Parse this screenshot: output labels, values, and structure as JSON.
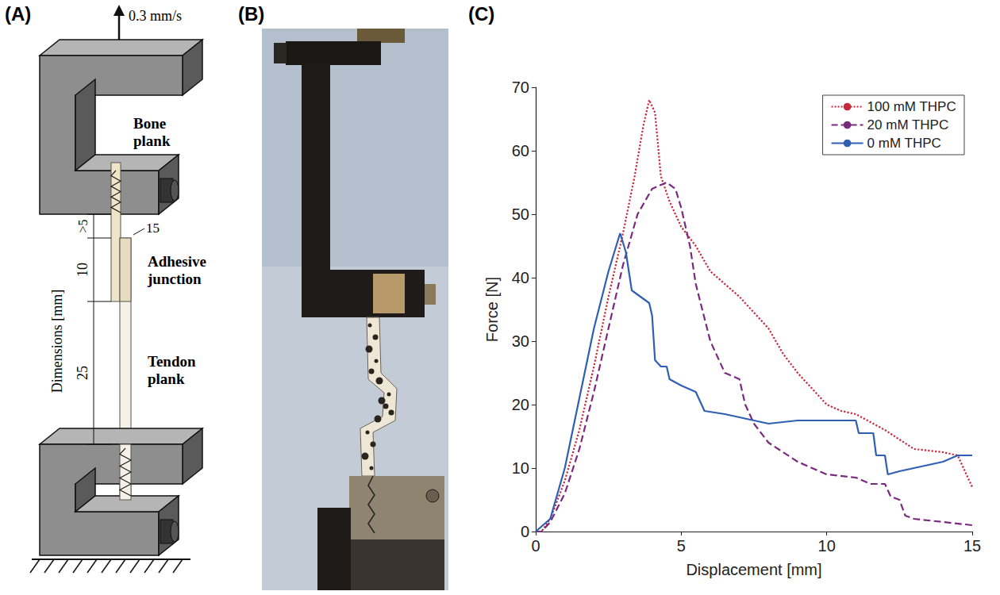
{
  "panels": [
    "(A)",
    "(B)",
    "(C)"
  ],
  "diagram": {
    "speed": "0.3 mm/s",
    "bone": "Bone plank",
    "junction": "Adhesive junction",
    "tendon": "Tendon plank",
    "dimension_title": "Dimensions [mm]",
    "gap": ">5",
    "overlap": 10,
    "width": 15,
    "free_length": 25
  },
  "chart_data": {
    "type": "line",
    "xlabel": "Displacement [mm]",
    "ylabel": "Force [N]",
    "xlim": [
      0,
      15
    ],
    "xticks": [
      0,
      5,
      10,
      15
    ],
    "ylim": [
      0,
      70
    ],
    "yticks": [
      0,
      10,
      20,
      30,
      40,
      50,
      60,
      70
    ],
    "grid": false,
    "legend": "upper right",
    "series": [
      {
        "name": "100 mM THPC",
        "color": "#c8283c",
        "line_style": "dotted",
        "x": [
          0,
          0.2,
          0.5,
          1,
          1.5,
          2,
          2.5,
          3,
          3.4,
          3.7,
          3.9,
          4.1,
          4.3,
          4.6,
          5,
          5.5,
          6,
          7,
          8,
          8.5,
          9,
          10,
          10.5,
          11,
          12,
          13,
          14,
          14.5,
          15
        ],
        "values": [
          0,
          0,
          2,
          8,
          16,
          26,
          37,
          47,
          56,
          64,
          68,
          66,
          56,
          52,
          48,
          45,
          41,
          37,
          32,
          28,
          25,
          20,
          19,
          18.5,
          16,
          13,
          12.5,
          12,
          7
        ]
      },
      {
        "name": "20 mM THPC",
        "color": "#7a2a7e",
        "line_style": "dashed",
        "x": [
          0,
          0.2,
          0.5,
          1,
          1.5,
          2,
          2.5,
          3,
          3.5,
          4,
          4.5,
          4.8,
          5,
          5.3,
          5.5,
          6,
          6.3,
          6.5,
          7,
          7.2,
          7.5,
          8,
          9,
          10,
          11,
          11.5,
          12,
          12.2,
          12.5,
          12.7,
          13,
          14,
          15
        ],
        "values": [
          0,
          0,
          1.5,
          6,
          13,
          22,
          32,
          42,
          50,
          54,
          55,
          54,
          51,
          45,
          39,
          30,
          27,
          25,
          24,
          20,
          17,
          14,
          11,
          9,
          8.5,
          7.5,
          7.5,
          5.5,
          5,
          2.5,
          2,
          1.5,
          1
        ]
      },
      {
        "name": "0 mM THPC",
        "color": "#2f5fb3",
        "line_style": "solid",
        "x": [
          0,
          0.5,
          1,
          1.5,
          2,
          2.5,
          2.9,
          3.1,
          3.3,
          3.6,
          3.9,
          4.0,
          4.1,
          4.3,
          4.5,
          4.6,
          5,
          5.5,
          5.8,
          6.5,
          7,
          8,
          9,
          10,
          11,
          11.1,
          11.6,
          11.7,
          12,
          12.1,
          12.5,
          13,
          14,
          14.5,
          15
        ],
        "values": [
          0,
          2,
          10,
          21,
          32,
          41,
          47,
          44,
          38,
          37,
          36,
          34,
          27,
          26,
          26,
          24,
          23,
          22,
          19,
          18.5,
          18,
          17,
          17.5,
          17.5,
          17.5,
          15.5,
          15.5,
          12,
          12,
          9,
          9.5,
          10,
          11,
          12,
          12
        ]
      }
    ]
  }
}
